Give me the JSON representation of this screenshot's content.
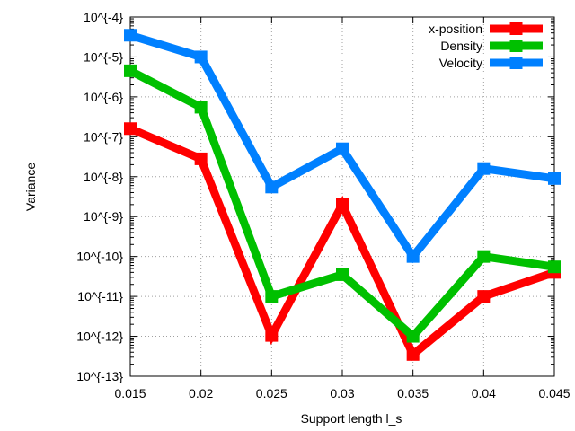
{
  "chart_data": {
    "type": "line",
    "xlabel": "Support length l_s",
    "ylabel": "Variance",
    "x": [
      0.015,
      0.02,
      0.025,
      0.03,
      0.035,
      0.04,
      0.045
    ],
    "x_tick_labels": [
      "0.015",
      "0.02",
      "0.025",
      "0.03",
      "0.035",
      "0.04",
      "0.045"
    ],
    "xlim": [
      0.015,
      0.045
    ],
    "y_scale": "log",
    "ylim": [
      1e-13,
      0.0001
    ],
    "y_ticks": [
      0.0001,
      1e-05,
      1e-06,
      1e-07,
      1e-08,
      1e-09,
      1e-10,
      1e-11,
      1e-12,
      1e-13
    ],
    "y_tick_labels": [
      "10^{-4}",
      "10^{-5}",
      "10^{-6}",
      "10^{-7}",
      "10^{-8}",
      "10^{-9}",
      "10^{-10}",
      "10^{-11}",
      "10^{-12}",
      "10^{-13}"
    ],
    "grid": true,
    "legend_position": "top-right",
    "series": [
      {
        "name": "x-position",
        "color": "#ff0000",
        "marker": "square",
        "values": [
          1.6e-07,
          2.8e-08,
          1.05e-12,
          2e-09,
          3.5e-13,
          1e-11,
          4e-11
        ]
      },
      {
        "name": "Density",
        "color": "#00c000",
        "marker": "square",
        "values": [
          4.5e-06,
          5.5e-07,
          1e-11,
          3.5e-11,
          1e-12,
          1e-10,
          5.5e-11
        ]
      },
      {
        "name": "Velocity",
        "color": "#0080ff",
        "marker": "square",
        "values": [
          3.5e-05,
          1e-05,
          5.5e-09,
          5e-08,
          1e-10,
          1.6e-08,
          9e-09
        ]
      }
    ]
  }
}
